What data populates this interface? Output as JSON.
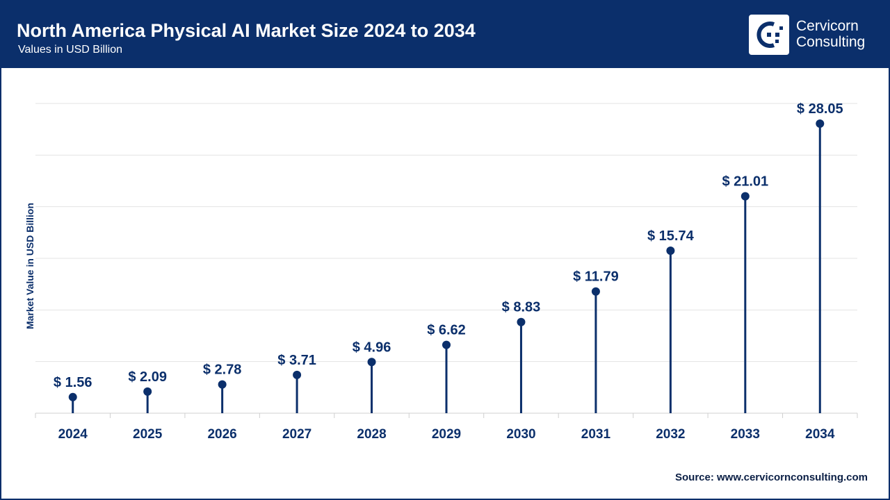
{
  "header": {
    "title": "North America Physical AI Market Size 2024 to 2034",
    "subtitle": "Values in USD Billion",
    "brand_line1": "Cervicorn",
    "brand_line2": "Consulting",
    "logo_icon": "cervicorn-logo-icon"
  },
  "colors": {
    "header_bg": "#0b2f6b",
    "series": "#0b2f6b",
    "label": "#0b2f6b",
    "grid": "#e3e3e3"
  },
  "footer": {
    "source": "Source: www.cervicornconsulting.com"
  },
  "chart_data": {
    "type": "lollipop",
    "title": "North America Physical AI Market Size 2024 to 2034",
    "subtitle": "Values in USD Billion",
    "xlabel": "",
    "ylabel": "Market Value in USD Billion",
    "ylim": [
      0,
      30
    ],
    "grid": true,
    "categories": [
      "2024",
      "2025",
      "2026",
      "2027",
      "2028",
      "2029",
      "2030",
      "2031",
      "2032",
      "2033",
      "2034"
    ],
    "values": [
      1.56,
      2.09,
      2.78,
      3.71,
      4.96,
      6.62,
      8.83,
      11.79,
      15.74,
      21.01,
      28.05
    ],
    "data_labels": [
      "$ 1.56",
      "$ 2.09",
      "$ 2.78",
      "$ 3.71",
      "$ 4.96",
      "$ 6.62",
      "$ 8.83",
      "$ 11.79",
      "$ 15.74",
      "$ 21.01",
      "$ 28.05"
    ]
  }
}
